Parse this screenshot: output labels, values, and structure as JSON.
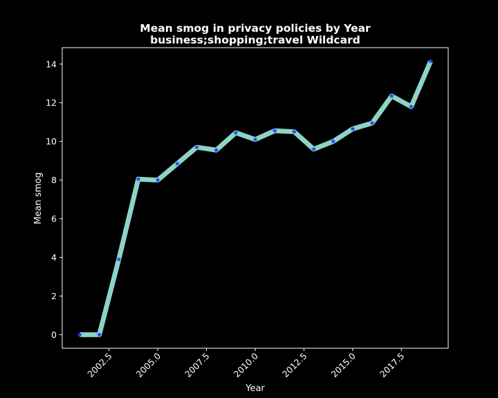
{
  "chart_data": {
    "type": "line",
    "title": "Mean smog in privacy policies by Year",
    "subtitle": "business;shopping;travel Wildcard",
    "xlabel": "Year",
    "ylabel": "Mean smog",
    "x": [
      2001,
      2002,
      2003,
      2004,
      2005,
      2006,
      2007,
      2008,
      2009,
      2010,
      2011,
      2012,
      2013,
      2014,
      2015,
      2016,
      2017,
      2018,
      2019
    ],
    "series": [
      {
        "values": [
          0.0,
          0.0,
          3.9,
          8.05,
          8.0,
          8.85,
          9.7,
          9.55,
          10.45,
          10.1,
          10.55,
          10.5,
          9.6,
          10.0,
          10.65,
          10.95,
          12.35,
          11.8,
          14.15
        ]
      }
    ],
    "x_ticks": [
      "2002.5",
      "2005.0",
      "2007.5",
      "2010.0",
      "2012.5",
      "2015.0",
      "2017.5"
    ],
    "y_ticks": [
      "0",
      "2",
      "4",
      "6",
      "8",
      "10",
      "12",
      "14"
    ],
    "xlim": [
      2000.1,
      2019.9
    ],
    "ylim": [
      -0.7,
      14.85
    ],
    "grid": false,
    "legend": "none",
    "colors": {
      "background": "#000000",
      "line": "#8dd3c7",
      "marker": "#1f3fff",
      "axes": "#ffffff",
      "text": "#ffffff"
    },
    "marker": "star"
  }
}
